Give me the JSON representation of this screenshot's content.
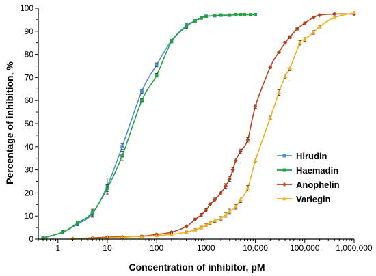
{
  "chart_data": {
    "type": "line",
    "title": "",
    "xlabel": "Concentration of inhibitor, pM",
    "ylabel": "Percentage of inhibition, %",
    "xscale": "log",
    "xlim": [
      0.4,
      1000000
    ],
    "ylim": [
      0,
      100
    ],
    "grid": false,
    "legend_position": "center-right",
    "x_ticks": [
      {
        "value": 1,
        "label": "1"
      },
      {
        "value": 10,
        "label": "10"
      },
      {
        "value": 100,
        "label": "100"
      },
      {
        "value": 1000,
        "label": "1000"
      },
      {
        "value": 10000,
        "label": "10,000"
      },
      {
        "value": 100000,
        "label": "100,000"
      },
      {
        "value": 1000000,
        "label": "1,000,000"
      }
    ],
    "y_ticks": [
      {
        "value": 0,
        "label": "0"
      },
      {
        "value": 10,
        "label": "10"
      },
      {
        "value": 20,
        "label": "20"
      },
      {
        "value": 30,
        "label": "30"
      },
      {
        "value": 40,
        "label": "40"
      },
      {
        "value": 50,
        "label": "50"
      },
      {
        "value": 60,
        "label": "60"
      },
      {
        "value": 70,
        "label": "70"
      },
      {
        "value": 80,
        "label": "80"
      },
      {
        "value": 90,
        "label": "90"
      },
      {
        "value": 100,
        "label": "100"
      }
    ],
    "series": [
      {
        "name": "Hirudin",
        "color": "#4a8fd4",
        "marker": "square",
        "points": [
          [
            0.5,
            0.5
          ],
          [
            1.25,
            3.0
          ],
          [
            2.5,
            6.5
          ],
          [
            5,
            11
          ],
          [
            10,
            23
          ],
          [
            20,
            40
          ],
          [
            50,
            64
          ],
          [
            100,
            75.5
          ],
          [
            200,
            86
          ],
          [
            400,
            92.5
          ],
          [
            600,
            94.5
          ],
          [
            800,
            95.8
          ],
          [
            1000,
            96.5
          ],
          [
            1500,
            96.8
          ],
          [
            2000,
            97
          ],
          [
            3000,
            97
          ],
          [
            4000,
            97.2
          ],
          [
            5000,
            97.2
          ],
          [
            6000,
            97.2
          ],
          [
            8000,
            97.2
          ],
          [
            10000,
            97.2
          ]
        ],
        "errors": [
          0.3,
          0.8,
          0.8,
          1.5,
          3.5,
          1.2,
          0.8,
          0.8,
          0.6,
          0.8,
          0.5,
          0.4,
          0.4,
          0.4,
          0.3,
          0.3,
          0.3,
          0.3,
          0.3,
          0.3,
          0.3
        ]
      },
      {
        "name": "Haemadin",
        "color": "#27a345",
        "marker": "square",
        "points": [
          [
            0.5,
            0.5
          ],
          [
            1.25,
            3.0
          ],
          [
            2.5,
            7.0
          ],
          [
            5,
            11.5
          ],
          [
            10,
            22
          ],
          [
            20,
            36
          ],
          [
            50,
            60
          ],
          [
            100,
            71
          ],
          [
            200,
            85.5
          ],
          [
            400,
            92
          ],
          [
            600,
            94.5
          ],
          [
            800,
            95.8
          ],
          [
            1000,
            96.5
          ],
          [
            1500,
            96.8
          ],
          [
            2000,
            97
          ],
          [
            3000,
            97
          ],
          [
            4000,
            97.2
          ],
          [
            5000,
            97.2
          ],
          [
            6000,
            97.2
          ],
          [
            8000,
            97.2
          ],
          [
            10000,
            97.2
          ]
        ],
        "errors": [
          0.3,
          0.8,
          0.8,
          1.5,
          1.5,
          2.0,
          0.8,
          0.8,
          0.6,
          0.8,
          0.5,
          0.4,
          0.4,
          0.4,
          0.3,
          0.3,
          0.3,
          0.3,
          0.3,
          0.3,
          0.3
        ]
      },
      {
        "name": "Anophelin",
        "color": "#b8431c",
        "marker": "diamond",
        "points": [
          [
            2,
            0.2
          ],
          [
            5,
            0.5
          ],
          [
            10,
            0.8
          ],
          [
            20,
            1.0
          ],
          [
            50,
            1.3
          ],
          [
            100,
            2.0
          ],
          [
            200,
            3.0
          ],
          [
            400,
            5.5
          ],
          [
            600,
            8.5
          ],
          [
            800,
            10.5
          ],
          [
            1000,
            12.5
          ],
          [
            1200,
            15
          ],
          [
            1500,
            17
          ],
          [
            2000,
            20
          ],
          [
            2500,
            23
          ],
          [
            3000,
            26
          ],
          [
            3500,
            30
          ],
          [
            4000,
            34
          ],
          [
            5000,
            38
          ],
          [
            7000,
            43
          ],
          [
            10000,
            57.5
          ],
          [
            20000,
            74.5
          ],
          [
            30000,
            81
          ],
          [
            40000,
            85
          ],
          [
            50000,
            87.5
          ],
          [
            70000,
            91
          ],
          [
            100000,
            93.5
          ],
          [
            150000,
            96
          ],
          [
            200000,
            97
          ],
          [
            400000,
            97.5
          ],
          [
            1000000,
            97.5
          ]
        ],
        "errors": [
          0.2,
          0.2,
          0.2,
          0.3,
          0.3,
          0.4,
          0.4,
          0.5,
          0.6,
          0.6,
          0.7,
          0.7,
          0.8,
          0.8,
          1.0,
          1.0,
          1.0,
          1.0,
          1.0,
          1.0,
          0.8,
          0.6,
          0.6,
          0.6,
          0.6,
          0.5,
          0.5,
          0.5,
          0.4,
          0.4,
          0.4
        ]
      },
      {
        "name": "Variegin",
        "color": "#f0b020",
        "marker": "triangle",
        "points": [
          [
            2,
            0.2
          ],
          [
            5,
            0.3
          ],
          [
            10,
            0.5
          ],
          [
            20,
            0.8
          ],
          [
            50,
            1.2
          ],
          [
            100,
            1.5
          ],
          [
            200,
            2.0
          ],
          [
            400,
            3.0
          ],
          [
            600,
            4.0
          ],
          [
            800,
            5.0
          ],
          [
            1000,
            6.0
          ],
          [
            1200,
            7.0
          ],
          [
            1500,
            8.0
          ],
          [
            2000,
            9.0
          ],
          [
            2500,
            10.5
          ],
          [
            3000,
            12
          ],
          [
            4000,
            14
          ],
          [
            5000,
            17
          ],
          [
            7000,
            22
          ],
          [
            10000,
            34
          ],
          [
            20000,
            52.5
          ],
          [
            30000,
            63.5
          ],
          [
            40000,
            70.5
          ],
          [
            50000,
            74
          ],
          [
            80000,
            85
          ],
          [
            100000,
            86.5
          ],
          [
            150000,
            89.5
          ],
          [
            200000,
            92
          ],
          [
            400000,
            96
          ],
          [
            1000000,
            98
          ]
        ],
        "errors": [
          0.2,
          0.2,
          0.2,
          0.3,
          0.3,
          0.3,
          0.4,
          0.5,
          0.5,
          0.6,
          0.6,
          0.7,
          0.8,
          0.8,
          1.0,
          1.0,
          1.0,
          1.2,
          1.2,
          1.0,
          0.8,
          1.2,
          1.0,
          1.0,
          1.0,
          0.8,
          0.8,
          0.6,
          0.5,
          0.5
        ]
      }
    ]
  }
}
